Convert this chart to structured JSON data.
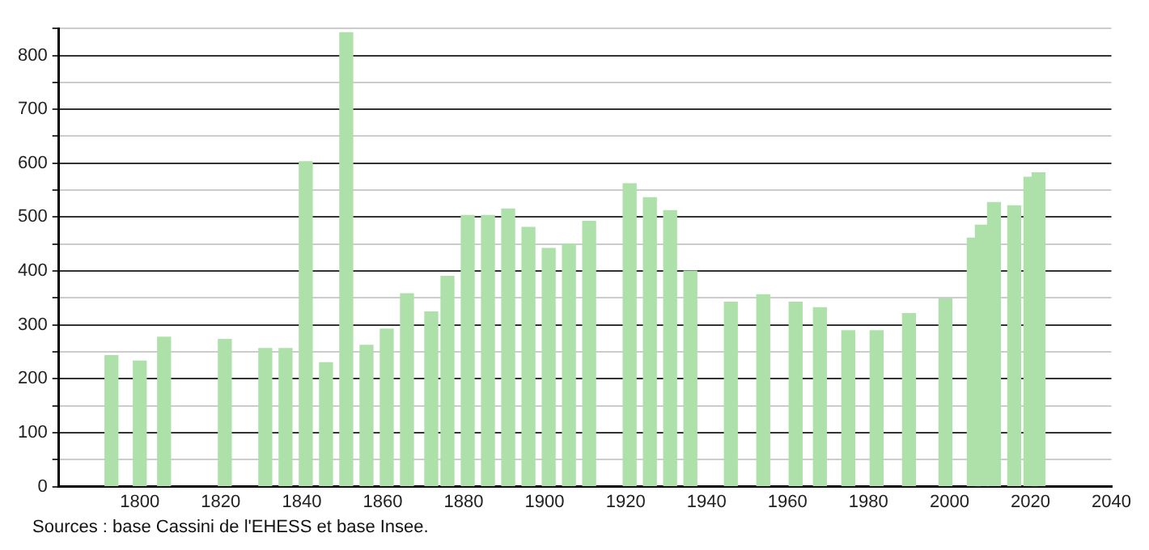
{
  "chart_data": {
    "type": "bar",
    "color": "#aee0aa",
    "x": [
      1793,
      1800,
      1806,
      1821,
      1831,
      1836,
      1841,
      1846,
      1851,
      1856,
      1861,
      1866,
      1872,
      1876,
      1881,
      1886,
      1891,
      1896,
      1901,
      1906,
      1911,
      1921,
      1926,
      1931,
      1936,
      1946,
      1954,
      1962,
      1968,
      1975,
      1982,
      1990,
      1999,
      2006,
      2008,
      2011,
      2016,
      2020,
      2022
    ],
    "values": [
      243,
      233,
      277,
      273,
      256,
      256,
      603,
      230,
      842,
      262,
      292,
      358,
      324,
      390,
      503,
      503,
      515,
      481,
      442,
      450,
      492,
      562,
      536,
      512,
      400,
      342,
      356,
      342,
      332,
      289,
      289,
      321,
      348,
      461,
      485,
      527,
      521,
      574,
      582
    ],
    "xlim": [
      1780,
      2040
    ],
    "xticks": [
      1800,
      1820,
      1840,
      1860,
      1880,
      1900,
      1920,
      1940,
      1960,
      1980,
      2000,
      2020,
      2040
    ],
    "ylim": [
      0,
      850
    ],
    "yticks": [
      0,
      {
        "value": 50,
        "label": null
      },
      100,
      {
        "value": 150,
        "label": null
      },
      200,
      {
        "value": 250,
        "label": null
      },
      300,
      {
        "value": 350,
        "label": null
      },
      400,
      {
        "value": 450,
        "label": null
      },
      500,
      {
        "value": 550,
        "label": null
      },
      600,
      {
        "value": 650,
        "label": null
      },
      700,
      {
        "value": 750,
        "label": null
      },
      800,
      {
        "value": 850,
        "label": null
      }
    ],
    "grid": "y",
    "legend": false,
    "annotations": [
      "Sources : base Cassini de l'EHESS et base Insee."
    ]
  }
}
